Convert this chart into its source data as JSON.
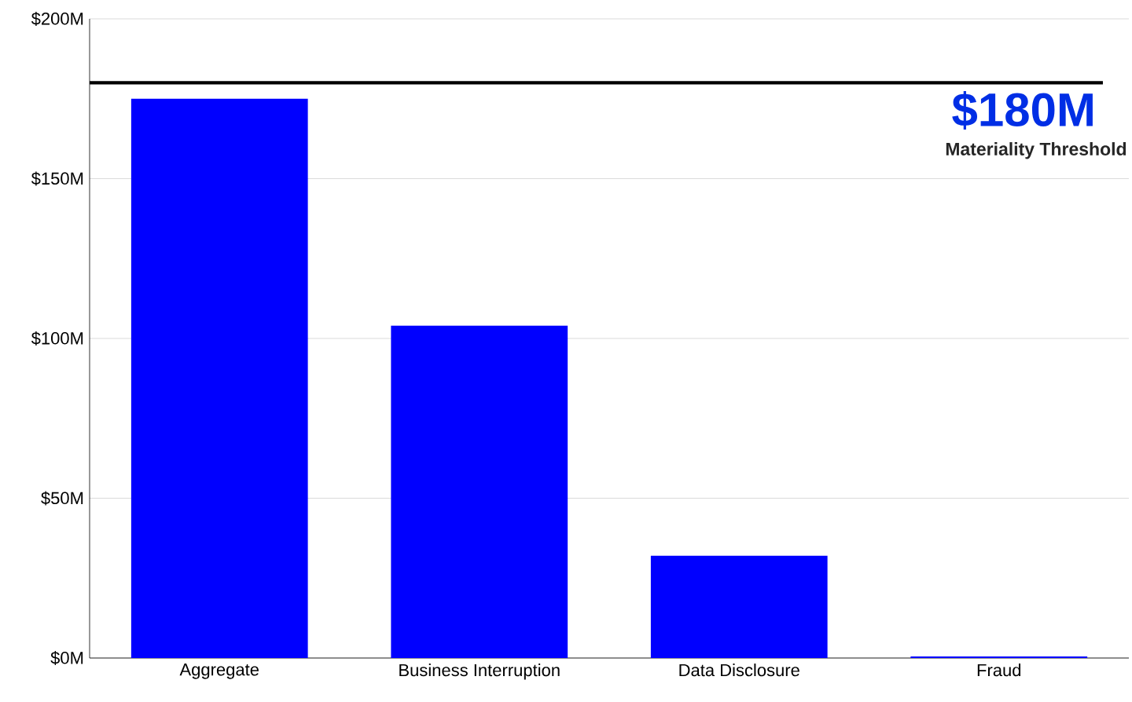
{
  "chart_data": {
    "type": "bar",
    "categories": [
      "Aggregate",
      "Business Interruption",
      "Data Disclosure",
      "Fraud"
    ],
    "values": [
      175,
      104,
      32,
      0.5
    ],
    "color": "#0000ff",
    "ylim": [
      0,
      200
    ],
    "yticks": [
      {
        "value": 0,
        "label": "$0M"
      },
      {
        "value": 50,
        "label": "$50M"
      },
      {
        "value": 100,
        "label": "$100M"
      },
      {
        "value": 150,
        "label": "$150M"
      },
      {
        "value": 200,
        "label": "$200M"
      }
    ],
    "grid": "y",
    "ref_lines": [
      {
        "axis": "y",
        "value": 180,
        "label": "$180M",
        "color": "#000000"
      }
    ],
    "annotations": [
      "Materiality Threshold"
    ]
  }
}
